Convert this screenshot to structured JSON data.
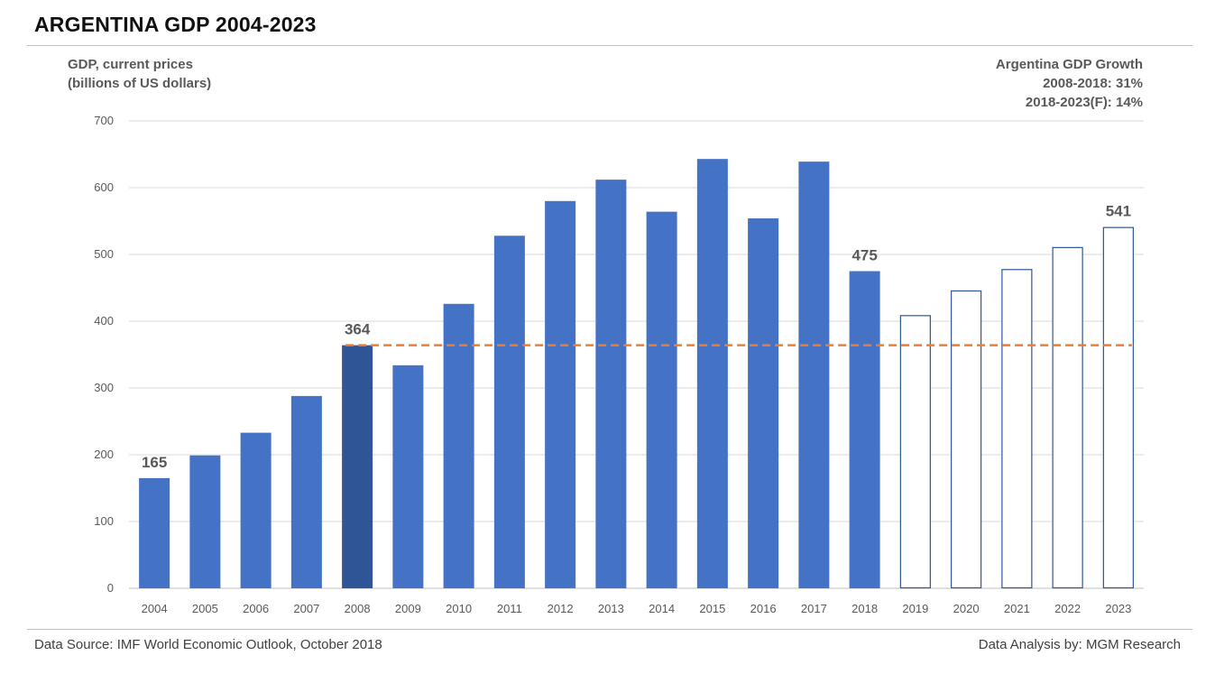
{
  "title": "ARGENTINA GDP 2004-2023",
  "footer": {
    "source": "Data Source: IMF World Economic Outlook, October 2018",
    "analysis": "Data Analysis by: MGM Research"
  },
  "chart_data": {
    "type": "bar",
    "ylabel_lines": [
      "GDP, current prices",
      "(billions of US dollars)"
    ],
    "annotation_lines": [
      "Argentina GDP Growth",
      "2008-2018: 31%",
      "2018-2023(F): 14%"
    ],
    "categories": [
      "2004",
      "2005",
      "2006",
      "2007",
      "2008",
      "2009",
      "2010",
      "2011",
      "2012",
      "2013",
      "2014",
      "2015",
      "2016",
      "2017",
      "2018",
      "2019",
      "2020",
      "2021",
      "2022",
      "2023"
    ],
    "values": [
      165,
      199,
      233,
      288,
      364,
      334,
      426,
      528,
      580,
      612,
      564,
      643,
      554,
      639,
      475,
      409,
      446,
      478,
      511,
      541
    ],
    "forecast_from": "2019",
    "highlight": "2008",
    "ylim": [
      0,
      700
    ],
    "yticks": [
      0,
      100,
      200,
      300,
      400,
      500,
      600,
      700
    ],
    "grid": true,
    "data_labels": [
      {
        "category": "2004",
        "text": "165"
      },
      {
        "category": "2008",
        "text": "364"
      },
      {
        "category": "2018",
        "text": "475"
      },
      {
        "category": "2023",
        "text": "541"
      }
    ],
    "reference_line": {
      "value": 364,
      "from": "2008",
      "to": "2023"
    },
    "colors": {
      "bar": "#4472c4",
      "highlight": "#2f5597",
      "forecast_stroke": "#2f5597",
      "reference_line": "#ed7d31",
      "grid": "#d9d9d9"
    }
  }
}
